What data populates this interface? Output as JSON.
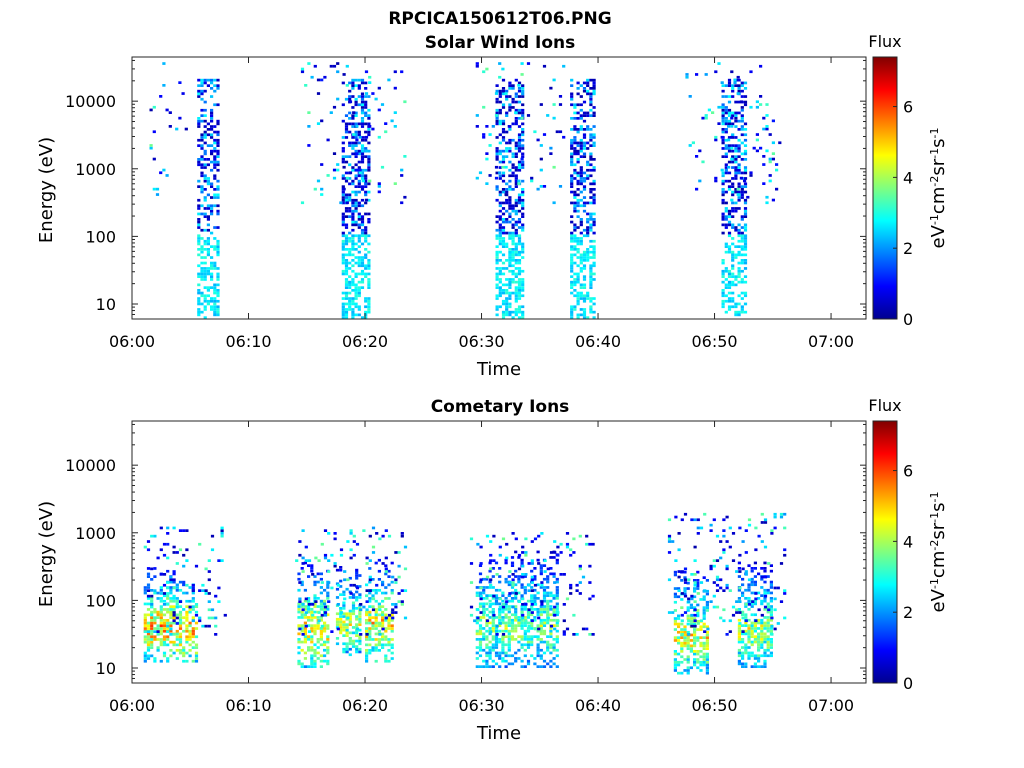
{
  "figure_title": "RPCICA150612T06.PNG",
  "chart_data": [
    {
      "type": "heatmap",
      "title": "Solar Wind Ions",
      "xlabel": "Time",
      "ylabel": "Energy (eV)",
      "x_ticks": [
        "06:00",
        "06:10",
        "06:20",
        "06:30",
        "06:40",
        "06:50",
        "07:00"
      ],
      "x_range_minutes": [
        0,
        63
      ],
      "y_scale": "log",
      "y_ticks": [
        "10",
        "100",
        "1000",
        "10000"
      ],
      "y_range": [
        6,
        45000
      ],
      "colorbar": {
        "title": "Flux",
        "unit_label": "eV-1cm-2sr-1s-1",
        "range": [
          0,
          7.4
        ],
        "ticks": [
          "0",
          "2",
          "4",
          "6"
        ],
        "colormap": "jet"
      },
      "bursts": [
        {
          "t_start": 5.6,
          "t_end": 7.4,
          "e_low": 6,
          "e_high": 20000,
          "peak_flux": 3.0
        },
        {
          "t_start": 18.0,
          "t_end": 20.3,
          "e_low": 6,
          "e_high": 20000,
          "peak_flux": 3.0
        },
        {
          "t_start": 31.2,
          "t_end": 33.6,
          "e_low": 6,
          "e_high": 20000,
          "peak_flux": 3.0
        },
        {
          "t_start": 37.6,
          "t_end": 39.6,
          "e_low": 6,
          "e_high": 20000,
          "peak_flux": 3.0
        },
        {
          "t_start": 50.6,
          "t_end": 52.6,
          "e_low": 6,
          "e_high": 20000,
          "peak_flux": 3.0
        }
      ],
      "scatter_regions": [
        {
          "t_start": 1.5,
          "t_end": 5.0,
          "e_low": 300,
          "e_high": 35000
        },
        {
          "t_start": 14.5,
          "t_end": 23.5,
          "e_low": 300,
          "e_high": 35000
        },
        {
          "t_start": 29.5,
          "t_end": 37.0,
          "e_low": 300,
          "e_high": 35000
        },
        {
          "t_start": 47.5,
          "t_end": 55.5,
          "e_low": 300,
          "e_high": 35000
        }
      ]
    },
    {
      "type": "heatmap",
      "title": "Cometary Ions",
      "xlabel": "Time",
      "ylabel": "Energy (eV)",
      "x_ticks": [
        "06:00",
        "06:10",
        "06:20",
        "06:30",
        "06:40",
        "06:50",
        "07:00"
      ],
      "x_range_minutes": [
        0,
        63
      ],
      "y_scale": "log",
      "y_ticks": [
        "10",
        "100",
        "1000",
        "10000"
      ],
      "y_range": [
        6,
        45000
      ],
      "colorbar": {
        "title": "Flux",
        "unit_label": "eV-1cm-2sr-1s-1",
        "range": [
          0,
          7.4
        ],
        "ticks": [
          "0",
          "2",
          "4",
          "6"
        ],
        "colormap": "jet"
      },
      "bursts": [
        {
          "t_start": 1.0,
          "t_end": 5.5,
          "e_low": 12,
          "e_high": 300,
          "peak_flux": 6.2
        },
        {
          "t_start": 14.2,
          "t_end": 16.8,
          "e_low": 10,
          "e_high": 350,
          "peak_flux": 5.8
        },
        {
          "t_start": 17.5,
          "t_end": 19.5,
          "e_low": 15,
          "e_high": 300,
          "peak_flux": 5.0
        },
        {
          "t_start": 20.0,
          "t_end": 22.2,
          "e_low": 12,
          "e_high": 400,
          "peak_flux": 5.8
        },
        {
          "t_start": 29.5,
          "t_end": 36.5,
          "e_low": 10,
          "e_high": 500,
          "peak_flux": 4.6
        },
        {
          "t_start": 46.5,
          "t_end": 49.5,
          "e_low": 8,
          "e_high": 300,
          "peak_flux": 5.5
        },
        {
          "t_start": 52.0,
          "t_end": 55.0,
          "e_low": 10,
          "e_high": 350,
          "peak_flux": 5.0
        }
      ],
      "scatter_regions": [
        {
          "t_start": 1.0,
          "t_end": 8.0,
          "e_low": 30,
          "e_high": 1200
        },
        {
          "t_start": 14.0,
          "t_end": 23.5,
          "e_low": 30,
          "e_high": 1200
        },
        {
          "t_start": 29.0,
          "t_end": 39.5,
          "e_low": 30,
          "e_high": 1000
        },
        {
          "t_start": 46.0,
          "t_end": 56.0,
          "e_low": 30,
          "e_high": 1800
        }
      ]
    }
  ]
}
